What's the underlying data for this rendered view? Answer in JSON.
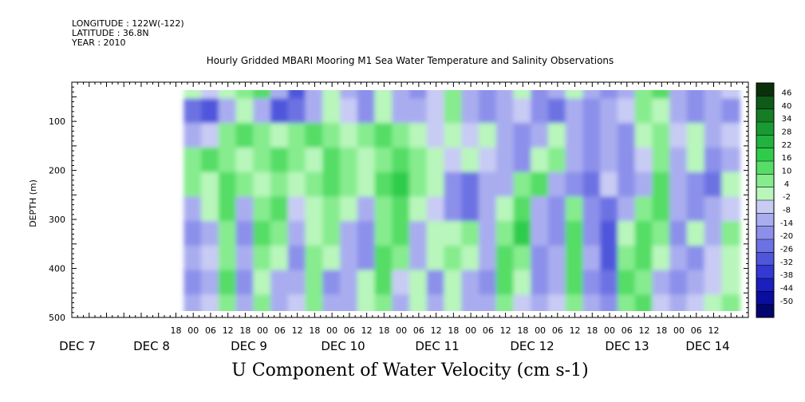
{
  "header": {
    "longitude": "LONGITUDE : 122W(-122)",
    "latitude": "LATITUDE : 36.8N",
    "year": "YEAR : 2010",
    "title": "Hourly Gridded MBARI Mooring M1 Sea Water Temperature and Salinity Observations",
    "footer": "U Component of Water Velocity (cm s-1)"
  },
  "chart_data": {
    "type": "heatmap",
    "title": "Hourly Gridded MBARI Mooring M1 Sea Water Temperature and Salinity Observations",
    "xlabel": "",
    "ylabel": "DEPTH (m)",
    "variable": "U Component of Water Velocity (cm s-1)",
    "y_axis": {
      "range": [
        500,
        20
      ],
      "inverted": true,
      "ticks": [
        100,
        200,
        300,
        400,
        500
      ]
    },
    "x_axis": {
      "hour_ticks": [
        "18",
        "00",
        "06",
        "12",
        "18",
        "00",
        "06",
        "12",
        "18",
        "00",
        "06",
        "12",
        "18",
        "00",
        "06",
        "12",
        "18",
        "00",
        "06",
        "12",
        "18",
        "00",
        "06",
        "12",
        "18",
        "00",
        "06",
        "12",
        "18",
        "00",
        "06",
        "12"
      ],
      "day_labels": [
        "DEC  7",
        "DEC  8",
        "DEC  9",
        "DEC 10",
        "DEC 11",
        "DEC 12",
        "DEC 13",
        "DEC 14"
      ]
    },
    "colorbar": {
      "labels": [
        "46",
        "40",
        "34",
        "28",
        "22",
        "16",
        "10",
        "4",
        "-2",
        "-8",
        "-14",
        "-20",
        "-26",
        "-32",
        "-38",
        "-44",
        "-50"
      ],
      "range": [
        -50,
        52
      ]
    },
    "data_range_hours": [
      0,
      186
    ],
    "field_approx": {
      "time_hours": [
        0,
        6,
        12,
        18,
        24,
        30,
        36,
        42,
        48,
        54,
        60,
        66,
        72,
        78,
        84,
        90,
        96,
        102,
        108,
        114,
        120,
        126,
        132,
        138,
        144,
        150,
        156,
        162,
        168,
        174,
        180,
        186
      ],
      "depth_m": [
        30,
        80,
        130,
        180,
        230,
        280,
        330,
        380,
        430,
        480
      ],
      "u_cm_s": [
        [
          4,
          -2,
          4,
          10,
          16,
          -8,
          -26,
          -8,
          4,
          -8,
          -14,
          4,
          -8,
          -14,
          -2,
          10,
          -8,
          -14,
          -8,
          4,
          -14,
          -8,
          4,
          -8,
          -14,
          -8,
          10,
          16,
          -8,
          -14,
          -8,
          -2
        ],
        [
          -20,
          -26,
          -8,
          4,
          -8,
          -26,
          -20,
          -8,
          4,
          -2,
          -14,
          4,
          -8,
          -8,
          -2,
          10,
          -8,
          -14,
          -8,
          -2,
          -14,
          -20,
          -8,
          -14,
          -8,
          -2,
          10,
          4,
          -8,
          -14,
          -8,
          -14
        ],
        [
          -8,
          -2,
          10,
          16,
          10,
          4,
          10,
          16,
          10,
          4,
          10,
          16,
          10,
          4,
          -2,
          4,
          -2,
          4,
          -8,
          -14,
          -8,
          4,
          -8,
          -14,
          -8,
          -14,
          4,
          10,
          -2,
          4,
          -8,
          -2
        ],
        [
          10,
          16,
          10,
          4,
          10,
          16,
          10,
          4,
          16,
          10,
          4,
          10,
          16,
          10,
          4,
          -2,
          4,
          -2,
          -8,
          -14,
          4,
          10,
          -8,
          -14,
          -8,
          -14,
          -2,
          10,
          -8,
          4,
          -14,
          -8
        ],
        [
          10,
          4,
          16,
          10,
          4,
          10,
          4,
          10,
          16,
          10,
          4,
          16,
          22,
          10,
          4,
          -14,
          -20,
          -8,
          -8,
          10,
          16,
          -8,
          -14,
          -20,
          -2,
          -14,
          -8,
          16,
          -8,
          -14,
          -20,
          4
        ],
        [
          -8,
          4,
          16,
          -8,
          10,
          16,
          -2,
          4,
          10,
          4,
          -8,
          10,
          16,
          4,
          -2,
          -14,
          -20,
          -8,
          4,
          16,
          -8,
          -14,
          10,
          -14,
          -20,
          -8,
          10,
          16,
          -8,
          -14,
          -8,
          -2
        ],
        [
          -14,
          -8,
          10,
          -14,
          16,
          10,
          -8,
          4,
          10,
          -8,
          -14,
          10,
          16,
          -8,
          4,
          4,
          10,
          -8,
          10,
          22,
          -8,
          -14,
          16,
          -14,
          -26,
          4,
          16,
          10,
          -14,
          4,
          -8,
          10
        ],
        [
          -8,
          -2,
          10,
          -8,
          10,
          4,
          -14,
          10,
          4,
          -8,
          -14,
          16,
          10,
          -8,
          4,
          10,
          4,
          -8,
          16,
          10,
          -14,
          -8,
          16,
          -8,
          -26,
          10,
          16,
          4,
          -8,
          -14,
          -2,
          4
        ],
        [
          -14,
          -8,
          16,
          -14,
          4,
          -8,
          -8,
          10,
          -14,
          -8,
          4,
          16,
          -2,
          4,
          -14,
          4,
          -8,
          -14,
          16,
          4,
          -14,
          -8,
          16,
          -14,
          -20,
          16,
          10,
          -8,
          -14,
          -8,
          -2,
          4
        ],
        [
          -8,
          -2,
          10,
          -8,
          10,
          -8,
          -2,
          10,
          -8,
          -8,
          4,
          10,
          -8,
          4,
          -8,
          4,
          -8,
          -8,
          10,
          -2,
          -8,
          -2,
          10,
          -8,
          -14,
          10,
          16,
          -2,
          -8,
          -2,
          4,
          10
        ]
      ]
    }
  },
  "colors": {
    "scale": [
      "#0b2f0b",
      "#0e5a1a",
      "#147d26",
      "#1a9a33",
      "#22b33f",
      "#2fcc4c",
      "#55dd66",
      "#86ec8e",
      "#b8f6bb",
      "#c8cbf4",
      "#a9adef",
      "#8c90ea",
      "#6d72e3",
      "#5056dc",
      "#3339d2",
      "#1a1fbd",
      "#0a0e9e",
      "#03066e"
    ]
  }
}
